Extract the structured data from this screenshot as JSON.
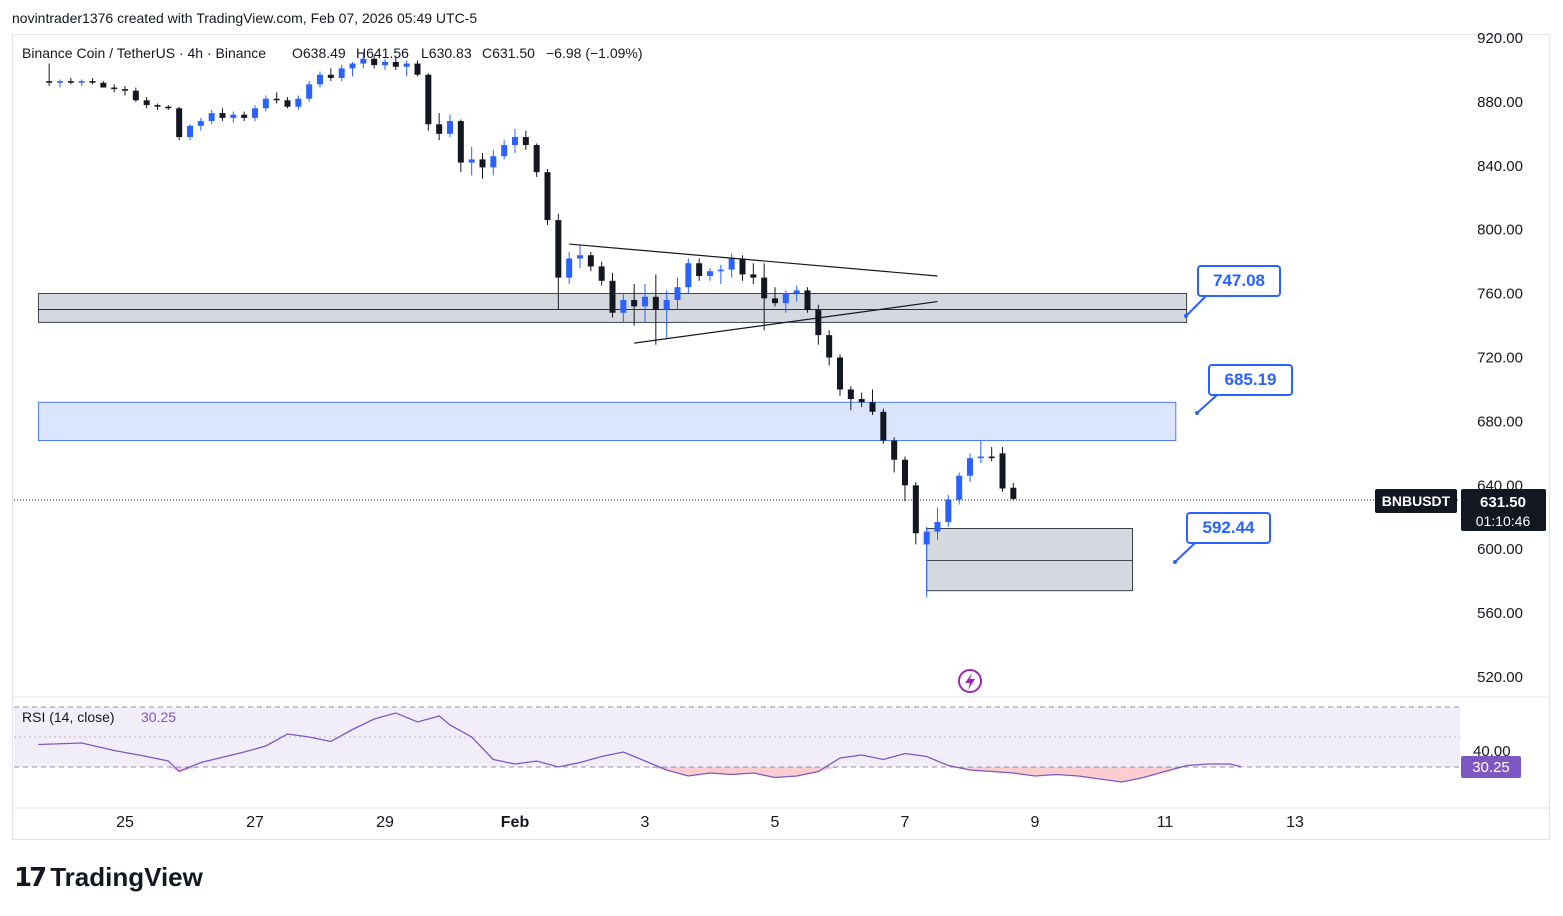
{
  "header": {
    "publisher": "novintrader1376 created with TradingView.com, Feb 07, 2026 05:49 UTC-5"
  },
  "legend": {
    "symbol": "Binance Coin / TetherUS · 4h · Binance",
    "open": "O638.49",
    "high": "H641.56",
    "low": "L630.83",
    "close": "C631.50",
    "change": "−6.98 (−1.09%)"
  },
  "price_axis": {
    "labels": [
      "920.00",
      "880.00",
      "840.00",
      "800.00",
      "760.00",
      "720.00",
      "680.00",
      "640.00",
      "600.00",
      "560.00",
      "520.00"
    ]
  },
  "last_price": {
    "ticker": "BNBUSDT",
    "price": "631.50",
    "countdown": "01:10:46"
  },
  "annotations": {
    "callout_1": "747.08",
    "callout_2": "685.19",
    "callout_3": "592.44"
  },
  "rsi": {
    "label": "RSI (14, close)",
    "value": "30.25",
    "axis_label": "40.00"
  },
  "time_axis": {
    "labels": [
      "25",
      "27",
      "29",
      "Feb",
      "3",
      "5",
      "7",
      "9",
      "11",
      "13"
    ]
  },
  "brand": {
    "name": "TradingView"
  },
  "colors": {
    "up": "#2962ff",
    "down": "#131722",
    "zone_grey": "#d1d4dc",
    "zone_blue": "#dbe5ff",
    "rsi_line": "#7e57c2",
    "callout": "#2962ff"
  },
  "chart_data": {
    "type": "candlestick",
    "symbol": "BNBUSDT",
    "interval": "4h",
    "ylim": [
      510,
      925
    ],
    "x_range": [
      "2026-01-23 16:00",
      "2026-02-14 12:00"
    ],
    "candles": [
      {
        "t": "2026-01-23 20:00",
        "o": 893,
        "h": 904,
        "l": 890,
        "c": 892
      },
      {
        "t": "2026-01-24 00:00",
        "o": 892,
        "h": 894,
        "l": 889,
        "c": 893
      },
      {
        "t": "2026-01-24 04:00",
        "o": 893,
        "h": 895,
        "l": 891,
        "c": 892
      },
      {
        "t": "2026-01-24 08:00",
        "o": 892,
        "h": 894,
        "l": 890,
        "c": 893
      },
      {
        "t": "2026-01-24 12:00",
        "o": 893,
        "h": 895,
        "l": 891,
        "c": 892
      },
      {
        "t": "2026-01-24 16:00",
        "o": 892,
        "h": 893,
        "l": 889,
        "c": 889
      },
      {
        "t": "2026-01-24 20:00",
        "o": 889,
        "h": 891,
        "l": 886,
        "c": 888
      },
      {
        "t": "2026-01-25 00:00",
        "o": 888,
        "h": 890,
        "l": 884,
        "c": 887
      },
      {
        "t": "2026-01-25 04:00",
        "o": 887,
        "h": 889,
        "l": 880,
        "c": 881
      },
      {
        "t": "2026-01-25 08:00",
        "o": 881,
        "h": 883,
        "l": 876,
        "c": 878
      },
      {
        "t": "2026-01-25 12:00",
        "o": 878,
        "h": 879,
        "l": 875,
        "c": 877
      },
      {
        "t": "2026-01-25 16:00",
        "o": 877,
        "h": 878,
        "l": 875,
        "c": 876
      },
      {
        "t": "2026-01-25 20:00",
        "o": 876,
        "h": 877,
        "l": 856,
        "c": 858
      },
      {
        "t": "2026-01-26 00:00",
        "o": 858,
        "h": 866,
        "l": 856,
        "c": 865
      },
      {
        "t": "2026-01-26 04:00",
        "o": 865,
        "h": 870,
        "l": 862,
        "c": 868
      },
      {
        "t": "2026-01-26 08:00",
        "o": 868,
        "h": 875,
        "l": 866,
        "c": 873
      },
      {
        "t": "2026-01-26 12:00",
        "o": 873,
        "h": 876,
        "l": 868,
        "c": 870
      },
      {
        "t": "2026-01-26 16:00",
        "o": 870,
        "h": 874,
        "l": 867,
        "c": 872
      },
      {
        "t": "2026-01-26 20:00",
        "o": 872,
        "h": 874,
        "l": 868,
        "c": 870
      },
      {
        "t": "2026-01-27 00:00",
        "o": 870,
        "h": 878,
        "l": 868,
        "c": 876
      },
      {
        "t": "2026-01-27 04:00",
        "o": 876,
        "h": 884,
        "l": 874,
        "c": 882
      },
      {
        "t": "2026-01-27 08:00",
        "o": 882,
        "h": 886,
        "l": 879,
        "c": 881
      },
      {
        "t": "2026-01-27 12:00",
        "o": 881,
        "h": 883,
        "l": 876,
        "c": 877
      },
      {
        "t": "2026-01-27 16:00",
        "o": 877,
        "h": 884,
        "l": 875,
        "c": 882
      },
      {
        "t": "2026-01-27 20:00",
        "o": 882,
        "h": 893,
        "l": 880,
        "c": 891
      },
      {
        "t": "2026-01-28 00:00",
        "o": 891,
        "h": 899,
        "l": 889,
        "c": 897
      },
      {
        "t": "2026-01-28 04:00",
        "o": 897,
        "h": 901,
        "l": 893,
        "c": 895
      },
      {
        "t": "2026-01-28 08:00",
        "o": 895,
        "h": 903,
        "l": 893,
        "c": 901
      },
      {
        "t": "2026-01-28 12:00",
        "o": 901,
        "h": 905,
        "l": 896,
        "c": 904
      },
      {
        "t": "2026-01-28 16:00",
        "o": 904,
        "h": 910,
        "l": 901,
        "c": 907
      },
      {
        "t": "2026-01-28 20:00",
        "o": 907,
        "h": 909,
        "l": 901,
        "c": 903
      },
      {
        "t": "2026-01-29 00:00",
        "o": 903,
        "h": 907,
        "l": 900,
        "c": 905
      },
      {
        "t": "2026-01-29 04:00",
        "o": 905,
        "h": 908,
        "l": 900,
        "c": 902
      },
      {
        "t": "2026-01-29 08:00",
        "o": 902,
        "h": 906,
        "l": 896,
        "c": 904
      },
      {
        "t": "2026-01-29 12:00",
        "o": 904,
        "h": 906,
        "l": 896,
        "c": 897
      },
      {
        "t": "2026-01-29 16:00",
        "o": 897,
        "h": 898,
        "l": 862,
        "c": 866
      },
      {
        "t": "2026-01-29 20:00",
        "o": 866,
        "h": 873,
        "l": 856,
        "c": 860
      },
      {
        "t": "2026-01-30 00:00",
        "o": 860,
        "h": 872,
        "l": 858,
        "c": 868
      },
      {
        "t": "2026-01-30 04:00",
        "o": 868,
        "h": 869,
        "l": 836,
        "c": 842
      },
      {
        "t": "2026-01-30 08:00",
        "o": 842,
        "h": 852,
        "l": 834,
        "c": 844
      },
      {
        "t": "2026-01-30 12:00",
        "o": 844,
        "h": 848,
        "l": 832,
        "c": 839
      },
      {
        "t": "2026-01-30 16:00",
        "o": 839,
        "h": 850,
        "l": 834,
        "c": 846
      },
      {
        "t": "2026-01-30 20:00",
        "o": 846,
        "h": 856,
        "l": 844,
        "c": 853
      },
      {
        "t": "2026-01-31 00:00",
        "o": 853,
        "h": 863,
        "l": 848,
        "c": 858
      },
      {
        "t": "2026-01-31 04:00",
        "o": 858,
        "h": 862,
        "l": 850,
        "c": 853
      },
      {
        "t": "2026-01-31 08:00",
        "o": 853,
        "h": 854,
        "l": 833,
        "c": 836
      },
      {
        "t": "2026-01-31 12:00",
        "o": 836,
        "h": 838,
        "l": 803,
        "c": 806
      },
      {
        "t": "2026-01-31 16:00",
        "o": 806,
        "h": 810,
        "l": 750,
        "c": 770
      },
      {
        "t": "2026-01-31 20:00",
        "o": 770,
        "h": 786,
        "l": 766,
        "c": 782
      },
      {
        "t": "2026-02-01 00:00",
        "o": 782,
        "h": 790,
        "l": 776,
        "c": 784
      },
      {
        "t": "2026-02-01 04:00",
        "o": 784,
        "h": 786,
        "l": 774,
        "c": 777
      },
      {
        "t": "2026-02-01 08:00",
        "o": 777,
        "h": 780,
        "l": 765,
        "c": 768
      },
      {
        "t": "2026-02-01 12:00",
        "o": 768,
        "h": 773,
        "l": 745,
        "c": 748
      },
      {
        "t": "2026-02-01 16:00",
        "o": 748,
        "h": 760,
        "l": 742,
        "c": 756
      },
      {
        "t": "2026-02-01 20:00",
        "o": 756,
        "h": 766,
        "l": 740,
        "c": 752
      },
      {
        "t": "2026-02-02 00:00",
        "o": 752,
        "h": 766,
        "l": 742,
        "c": 758
      },
      {
        "t": "2026-02-02 04:00",
        "o": 758,
        "h": 772,
        "l": 728,
        "c": 750
      },
      {
        "t": "2026-02-02 08:00",
        "o": 750,
        "h": 762,
        "l": 732,
        "c": 756
      },
      {
        "t": "2026-02-02 12:00",
        "o": 756,
        "h": 770,
        "l": 750,
        "c": 764
      },
      {
        "t": "2026-02-02 16:00",
        "o": 764,
        "h": 782,
        "l": 760,
        "c": 779
      },
      {
        "t": "2026-02-02 20:00",
        "o": 779,
        "h": 782,
        "l": 768,
        "c": 771
      },
      {
        "t": "2026-02-03 00:00",
        "o": 771,
        "h": 776,
        "l": 768,
        "c": 774
      },
      {
        "t": "2026-02-03 04:00",
        "o": 774,
        "h": 778,
        "l": 766,
        "c": 775
      },
      {
        "t": "2026-02-03 08:00",
        "o": 775,
        "h": 785,
        "l": 770,
        "c": 782
      },
      {
        "t": "2026-02-03 12:00",
        "o": 782,
        "h": 784,
        "l": 768,
        "c": 772
      },
      {
        "t": "2026-02-03 16:00",
        "o": 772,
        "h": 779,
        "l": 766,
        "c": 770
      },
      {
        "t": "2026-02-03 20:00",
        "o": 770,
        "h": 779,
        "l": 737,
        "c": 757
      },
      {
        "t": "2026-02-04 00:00",
        "o": 757,
        "h": 764,
        "l": 752,
        "c": 754
      },
      {
        "t": "2026-02-04 04:00",
        "o": 754,
        "h": 762,
        "l": 748,
        "c": 760
      },
      {
        "t": "2026-02-04 08:00",
        "o": 760,
        "h": 765,
        "l": 755,
        "c": 762
      },
      {
        "t": "2026-02-04 12:00",
        "o": 762,
        "h": 764,
        "l": 748,
        "c": 750
      },
      {
        "t": "2026-02-04 16:00",
        "o": 750,
        "h": 753,
        "l": 728,
        "c": 734
      },
      {
        "t": "2026-02-04 20:00",
        "o": 734,
        "h": 737,
        "l": 715,
        "c": 720
      },
      {
        "t": "2026-02-05 00:00",
        "o": 720,
        "h": 722,
        "l": 696,
        "c": 700
      },
      {
        "t": "2026-02-05 04:00",
        "o": 700,
        "h": 702,
        "l": 687,
        "c": 694
      },
      {
        "t": "2026-02-05 08:00",
        "o": 694,
        "h": 698,
        "l": 689,
        "c": 692
      },
      {
        "t": "2026-02-05 12:00",
        "o": 692,
        "h": 700,
        "l": 684,
        "c": 686
      },
      {
        "t": "2026-02-05 16:00",
        "o": 686,
        "h": 688,
        "l": 666,
        "c": 668
      },
      {
        "t": "2026-02-05 20:00",
        "o": 668,
        "h": 670,
        "l": 648,
        "c": 656
      },
      {
        "t": "2026-02-06 00:00",
        "o": 656,
        "h": 658,
        "l": 630,
        "c": 640
      },
      {
        "t": "2026-02-06 04:00",
        "o": 640,
        "h": 642,
        "l": 603,
        "c": 610
      },
      {
        "t": "2026-02-06 08:00",
        "o": 603,
        "h": 614,
        "l": 570,
        "c": 611
      },
      {
        "t": "2026-02-06 12:00",
        "o": 611,
        "h": 626,
        "l": 606,
        "c": 617
      },
      {
        "t": "2026-02-06 16:00",
        "o": 617,
        "h": 634,
        "l": 614,
        "c": 631
      },
      {
        "t": "2026-02-06 20:00",
        "o": 631,
        "h": 648,
        "l": 628,
        "c": 646
      },
      {
        "t": "2026-02-07 00:00",
        "o": 646,
        "h": 660,
        "l": 642,
        "c": 657
      },
      {
        "t": "2026-02-07 04:00",
        "o": 657,
        "h": 668,
        "l": 654,
        "c": 658
      },
      {
        "t": "2026-02-07 08:00",
        "o": 658,
        "h": 664,
        "l": 655,
        "c": 657
      },
      {
        "t": "2026-02-07 12:00",
        "o": 660,
        "h": 664,
        "l": 636,
        "c": 638
      },
      {
        "t": "2026-02-07 16:00",
        "o": 638.49,
        "h": 641.56,
        "l": 630.83,
        "c": 631.5
      }
    ],
    "zones": [
      {
        "name": "grey resistance zone",
        "from_price": 742,
        "to_price": 760,
        "mid_price": 750,
        "from": "2026-01-23 16:00",
        "to": "2026-02-10 08:00"
      },
      {
        "name": "blue zone",
        "from_price": 668,
        "to_price": 692,
        "from": "2026-01-23 16:00",
        "to": "2026-02-10 04:00"
      },
      {
        "name": "grey support zone",
        "from_price": 574,
        "to_price": 613,
        "mid_price": 593,
        "from": "2026-02-06 08:00",
        "to": "2026-02-09 12:00"
      }
    ],
    "trendlines": [
      {
        "from": {
          "t": "2026-01-31 20:00",
          "p": 791
        },
        "to": {
          "t": "2026-02-06 12:00",
          "p": 771
        }
      },
      {
        "from": {
          "t": "2026-02-01 20:00",
          "p": 729
        },
        "to": {
          "t": "2026-02-06 12:00",
          "p": 755
        }
      }
    ],
    "last_price": 631.5,
    "rsi": {
      "period": 14,
      "ylim": [
        18,
        78
      ],
      "levels": [
        70,
        50,
        30
      ],
      "points": [
        {
          "t": "2026-01-23 16:00",
          "v": 45
        },
        {
          "t": "2026-01-24 08:00",
          "v": 46
        },
        {
          "t": "2026-01-24 20:00",
          "v": 41
        },
        {
          "t": "2026-01-25 08:00",
          "v": 37
        },
        {
          "t": "2026-01-25 16:00",
          "v": 34
        },
        {
          "t": "2026-01-25 20:00",
          "v": 27
        },
        {
          "t": "2026-01-26 04:00",
          "v": 33
        },
        {
          "t": "2026-01-26 20:00",
          "v": 40
        },
        {
          "t": "2026-01-27 04:00",
          "v": 44
        },
        {
          "t": "2026-01-27 12:00",
          "v": 52
        },
        {
          "t": "2026-01-27 20:00",
          "v": 50
        },
        {
          "t": "2026-01-28 04:00",
          "v": 47
        },
        {
          "t": "2026-01-28 12:00",
          "v": 55
        },
        {
          "t": "2026-01-28 20:00",
          "v": 62
        },
        {
          "t": "2026-01-29 04:00",
          "v": 66
        },
        {
          "t": "2026-01-29 12:00",
          "v": 60
        },
        {
          "t": "2026-01-29 16:00",
          "v": 62
        },
        {
          "t": "2026-01-29 20:00",
          "v": 64
        },
        {
          "t": "2026-01-30 00:00",
          "v": 58
        },
        {
          "t": "2026-01-30 08:00",
          "v": 50
        },
        {
          "t": "2026-01-30 16:00",
          "v": 35
        },
        {
          "t": "2026-01-31 00:00",
          "v": 32
        },
        {
          "t": "2026-01-31 08:00",
          "v": 34
        },
        {
          "t": "2026-01-31 16:00",
          "v": 30
        },
        {
          "t": "2026-02-01 00:00",
          "v": 33
        },
        {
          "t": "2026-02-01 08:00",
          "v": 37
        },
        {
          "t": "2026-02-01 16:00",
          "v": 40
        },
        {
          "t": "2026-02-02 00:00",
          "v": 34
        },
        {
          "t": "2026-02-02 08:00",
          "v": 28
        },
        {
          "t": "2026-02-02 16:00",
          "v": 24
        },
        {
          "t": "2026-02-03 00:00",
          "v": 26
        },
        {
          "t": "2026-02-03 08:00",
          "v": 25
        },
        {
          "t": "2026-02-03 16:00",
          "v": 26
        },
        {
          "t": "2026-02-04 00:00",
          "v": 23
        },
        {
          "t": "2026-02-04 08:00",
          "v": 24
        },
        {
          "t": "2026-02-04 16:00",
          "v": 27
        },
        {
          "t": "2026-02-05 00:00",
          "v": 36
        },
        {
          "t": "2026-02-05 08:00",
          "v": 38
        },
        {
          "t": "2026-02-05 16:00",
          "v": 35
        },
        {
          "t": "2026-02-06 00:00",
          "v": 39
        },
        {
          "t": "2026-02-06 08:00",
          "v": 37
        },
        {
          "t": "2026-02-06 16:00",
          "v": 31
        },
        {
          "t": "2026-02-07 00:00",
          "v": 28
        },
        {
          "t": "2026-02-07 08:00",
          "v": 27
        },
        {
          "t": "2026-02-07 16:00",
          "v": 26
        },
        {
          "t": "2026-02-08 00:00",
          "v": 24
        },
        {
          "t": "2026-02-08 08:00",
          "v": 25
        },
        {
          "t": "2026-02-08 16:00",
          "v": 24
        },
        {
          "t": "2026-02-09 00:00",
          "v": 22
        },
        {
          "t": "2026-02-09 08:00",
          "v": 20
        },
        {
          "t": "2026-02-09 16:00",
          "v": 23
        },
        {
          "t": "2026-02-10 00:00",
          "v": 27
        },
        {
          "t": "2026-02-10 08:00",
          "v": 31
        },
        {
          "t": "2026-02-10 16:00",
          "v": 32
        },
        {
          "t": "2026-02-11 00:00",
          "v": 32
        },
        {
          "t": "2026-02-11 04:00",
          "v": 30.25
        }
      ]
    }
  }
}
